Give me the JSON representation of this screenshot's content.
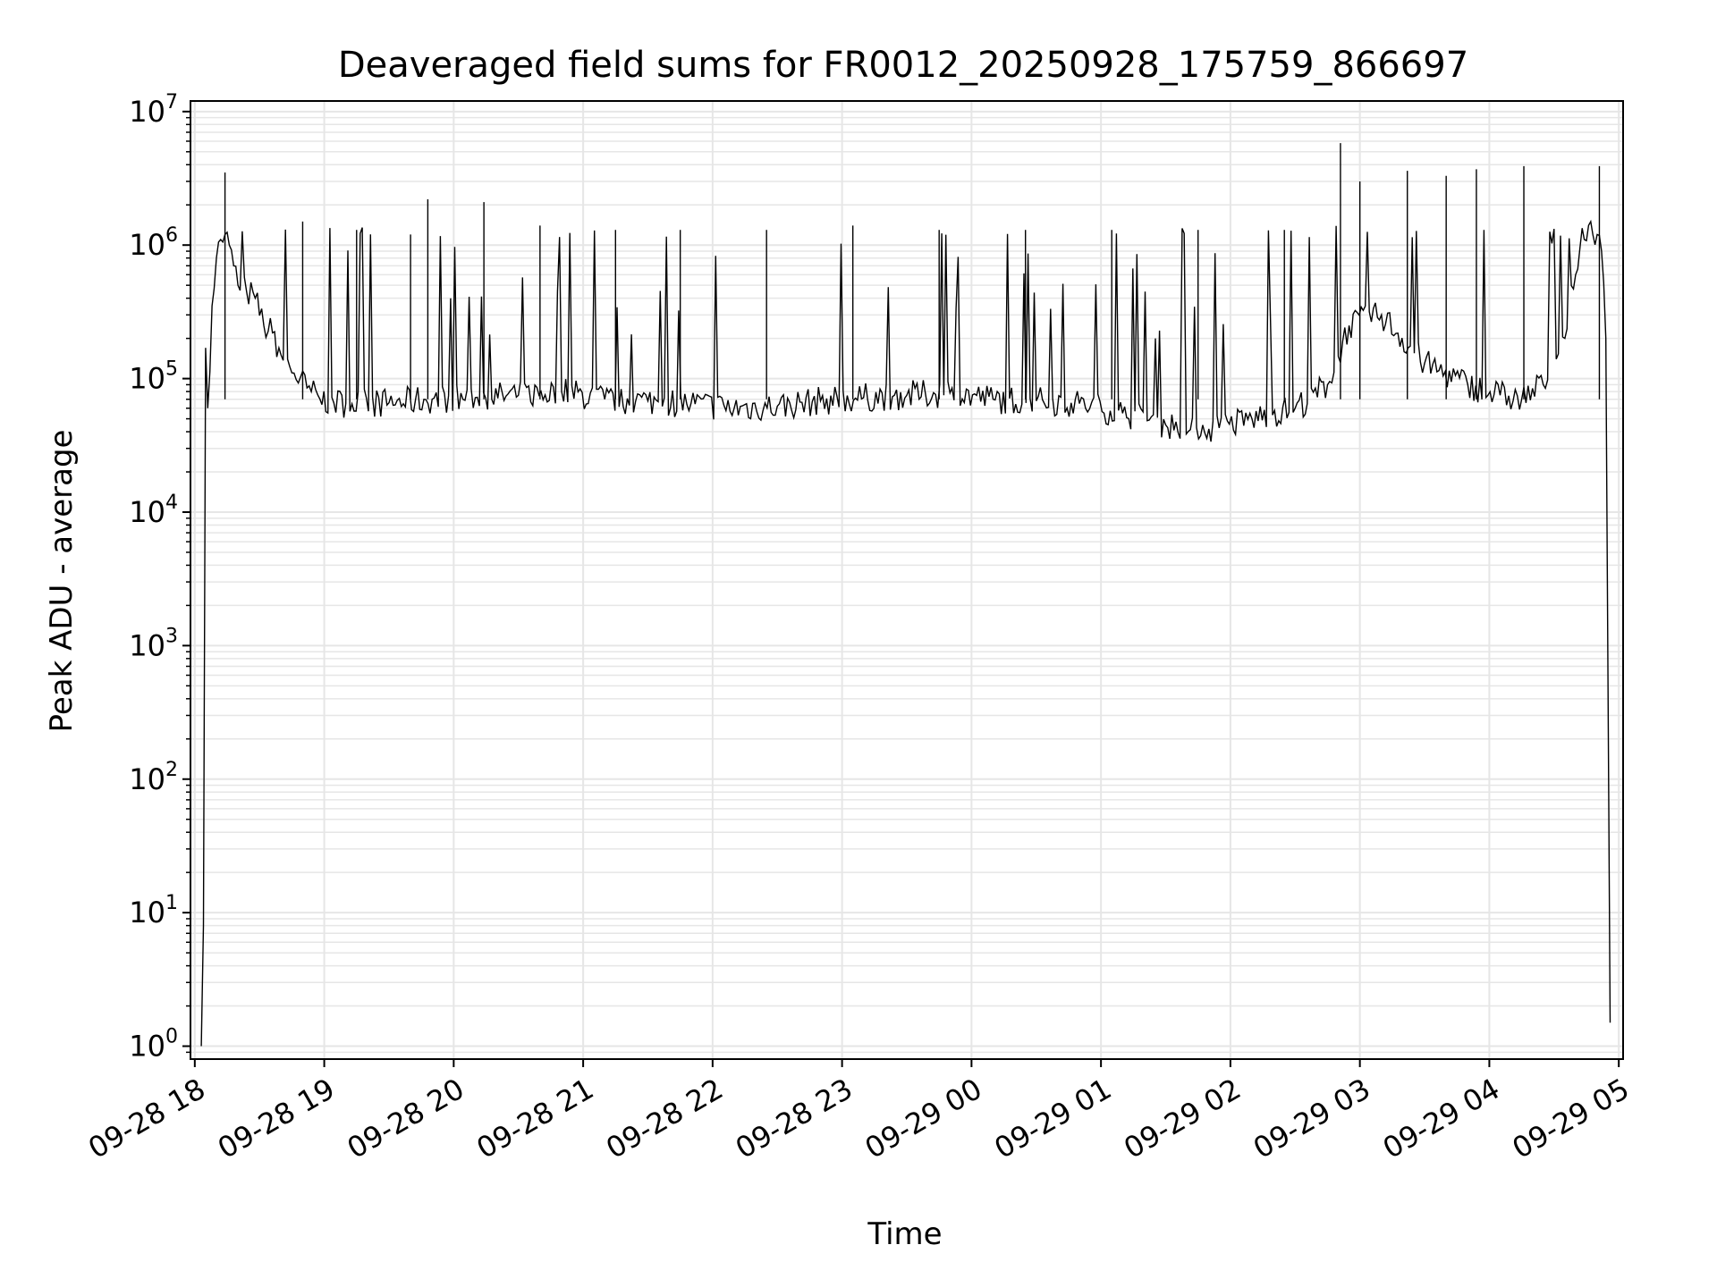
{
  "chart_data": {
    "type": "line",
    "title": "Deaveraged field sums for FR0012_20250928_175759_866697",
    "xlabel": "Time",
    "ylabel": "Peak ADU - average",
    "yscale": "log",
    "grid": true,
    "line_color": "#000000",
    "grid_color": "#e6e6e6",
    "xlim": [
      "2025-09-28 17:58",
      "2025-09-29 05:02"
    ],
    "ylim": [
      0.8,
      12000000
    ],
    "x_ticks": [
      {
        "value": "2025-09-28 18:00",
        "label": "09-28 18"
      },
      {
        "value": "2025-09-28 19:00",
        "label": "09-28 19"
      },
      {
        "value": "2025-09-28 20:00",
        "label": "09-28 20"
      },
      {
        "value": "2025-09-28 21:00",
        "label": "09-28 21"
      },
      {
        "value": "2025-09-28 22:00",
        "label": "09-28 22"
      },
      {
        "value": "2025-09-28 23:00",
        "label": "09-28 23"
      },
      {
        "value": "2025-09-29 00:00",
        "label": "09-29 00"
      },
      {
        "value": "2025-09-29 01:00",
        "label": "09-29 01"
      },
      {
        "value": "2025-09-29 02:00",
        "label": "09-29 02"
      },
      {
        "value": "2025-09-29 03:00",
        "label": "09-29 03"
      },
      {
        "value": "2025-09-29 04:00",
        "label": "09-29 04"
      },
      {
        "value": "2025-09-29 05:00",
        "label": "09-29 05"
      }
    ],
    "y_ticks": [
      {
        "value": 1,
        "base": "10",
        "exp": "0"
      },
      {
        "value": 10,
        "base": "10",
        "exp": "1"
      },
      {
        "value": 100,
        "base": "10",
        "exp": "2"
      },
      {
        "value": 1000,
        "base": "10",
        "exp": "3"
      },
      {
        "value": 10000,
        "base": "10",
        "exp": "4"
      },
      {
        "value": 100000,
        "base": "10",
        "exp": "5"
      },
      {
        "value": 1000000,
        "base": "10",
        "exp": "6"
      },
      {
        "value": 10000000,
        "base": "10",
        "exp": "7"
      }
    ],
    "series": [
      {
        "x": [
          "2025-09-28 18:03",
          "2025-09-28 18:04",
          "2025-09-28 18:05",
          "2025-09-28 18:06",
          "2025-09-28 18:08",
          "2025-09-28 18:10",
          "2025-09-28 18:12",
          "2025-09-28 18:14",
          "2025-09-28 18:16",
          "2025-09-28 18:18",
          "2025-09-28 18:20",
          "2025-09-28 18:24",
          "2025-09-28 18:28",
          "2025-09-28 18:32",
          "2025-09-28 18:36",
          "2025-09-28 18:40",
          "2025-09-28 18:46",
          "2025-09-28 18:52",
          "2025-09-28 18:58",
          "2025-09-28 19:10",
          "2025-09-28 19:30",
          "2025-09-28 19:50",
          "2025-09-28 20:10",
          "2025-09-28 20:30",
          "2025-09-28 20:50",
          "2025-09-28 21:10",
          "2025-09-28 21:30",
          "2025-09-28 21:50",
          "2025-09-28 22:10",
          "2025-09-28 22:30",
          "2025-09-28 22:50",
          "2025-09-28 23:10",
          "2025-09-28 23:30",
          "2025-09-28 23:50",
          "2025-09-29 00:10",
          "2025-09-29 00:30",
          "2025-09-29 00:50",
          "2025-09-29 01:10",
          "2025-09-29 01:30",
          "2025-09-29 01:50",
          "2025-09-29 02:10",
          "2025-09-29 02:30",
          "2025-09-29 02:45",
          "2025-09-29 02:55",
          "2025-09-29 03:10",
          "2025-09-29 03:30",
          "2025-09-29 03:50",
          "2025-09-29 04:05",
          "2025-09-29 04:15",
          "2025-09-29 04:25",
          "2025-09-29 04:35",
          "2025-09-29 04:40",
          "2025-09-29 04:44",
          "2025-09-29 04:47",
          "2025-09-29 04:50",
          "2025-09-29 04:52",
          "2025-09-29 04:54",
          "2025-09-29 04:56"
        ],
        "values": [
          1,
          8,
          170000,
          60000,
          350000,
          800000,
          1100000,
          1200000,
          1000000,
          700000,
          500000,
          450000,
          400000,
          250000,
          220000,
          150000,
          110000,
          85000,
          70000,
          65000,
          66000,
          70000,
          72000,
          75000,
          80000,
          70000,
          68000,
          65000,
          60000,
          62000,
          68000,
          72000,
          75000,
          78000,
          70000,
          68000,
          65000,
          55000,
          45000,
          42000,
          50000,
          60000,
          90000,
          250000,
          300000,
          130000,
          90000,
          75000,
          70000,
          90000,
          200000,
          600000,
          1100000,
          1500000,
          1200000,
          900000,
          200000,
          1.5
        ]
      }
    ],
    "spikes": [
      {
        "x": "2025-09-28 18:14",
        "value": 3500000
      },
      {
        "x": "2025-09-28 18:50",
        "value": 1500000
      },
      {
        "x": "2025-09-28 19:15",
        "value": 1300000
      },
      {
        "x": "2025-09-28 19:40",
        "value": 1200000
      },
      {
        "x": "2025-09-28 19:48",
        "value": 2200000
      },
      {
        "x": "2025-09-28 20:14",
        "value": 2100000
      },
      {
        "x": "2025-09-28 20:40",
        "value": 1400000
      },
      {
        "x": "2025-09-28 21:15",
        "value": 1300000
      },
      {
        "x": "2025-09-28 21:45",
        "value": 1300000
      },
      {
        "x": "2025-09-28 22:25",
        "value": 1300000
      },
      {
        "x": "2025-09-28 23:05",
        "value": 1400000
      },
      {
        "x": "2025-09-28 23:45",
        "value": 1300000
      },
      {
        "x": "2025-09-29 00:25",
        "value": 1300000
      },
      {
        "x": "2025-09-29 01:05",
        "value": 1300000
      },
      {
        "x": "2025-09-29 01:45",
        "value": 1300000
      },
      {
        "x": "2025-09-29 02:25",
        "value": 1300000
      },
      {
        "x": "2025-09-29 02:51",
        "value": 5800000
      },
      {
        "x": "2025-09-29 03:00",
        "value": 3000000
      },
      {
        "x": "2025-09-29 03:22",
        "value": 3600000
      },
      {
        "x": "2025-09-29 03:40",
        "value": 3300000
      },
      {
        "x": "2025-09-29 03:54",
        "value": 3700000
      },
      {
        "x": "2025-09-29 04:16",
        "value": 3900000
      },
      {
        "x": "2025-09-29 04:51",
        "value": 3900000
      }
    ]
  }
}
